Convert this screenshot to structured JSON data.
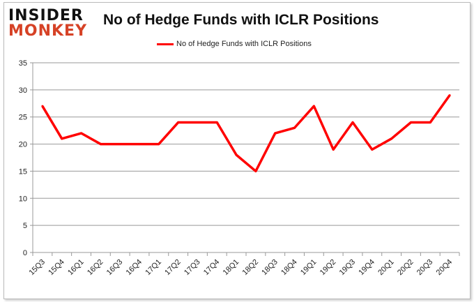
{
  "logo": {
    "line1": "INSIDER",
    "line2": "MONKEY"
  },
  "chart_data": {
    "type": "line",
    "title": "No of Hedge Funds with ICLR Positions",
    "categories": [
      "15Q3",
      "15Q4",
      "16Q1",
      "16Q2",
      "16Q3",
      "16Q4",
      "17Q1",
      "17Q2",
      "17Q3",
      "17Q4",
      "18Q1",
      "18Q2",
      "18Q3",
      "18Q4",
      "19Q1",
      "19Q2",
      "19Q3",
      "19Q4",
      "20Q1",
      "20Q2",
      "20Q3",
      "20Q4"
    ],
    "series": [
      {
        "name": "No of Hedge Funds with ICLR Positions",
        "color": "#ff0000",
        "values": [
          27,
          21,
          22,
          20,
          20,
          20,
          20,
          24,
          24,
          24,
          18,
          15,
          22,
          23,
          27,
          19,
          24,
          19,
          21,
          24,
          24,
          29
        ]
      }
    ],
    "yticks": [
      0,
      5,
      10,
      15,
      20,
      25,
      30,
      35
    ],
    "ylim": [
      0,
      35
    ],
    "xlabel": "",
    "ylabel": "",
    "grid": true,
    "legend": "top-center"
  }
}
